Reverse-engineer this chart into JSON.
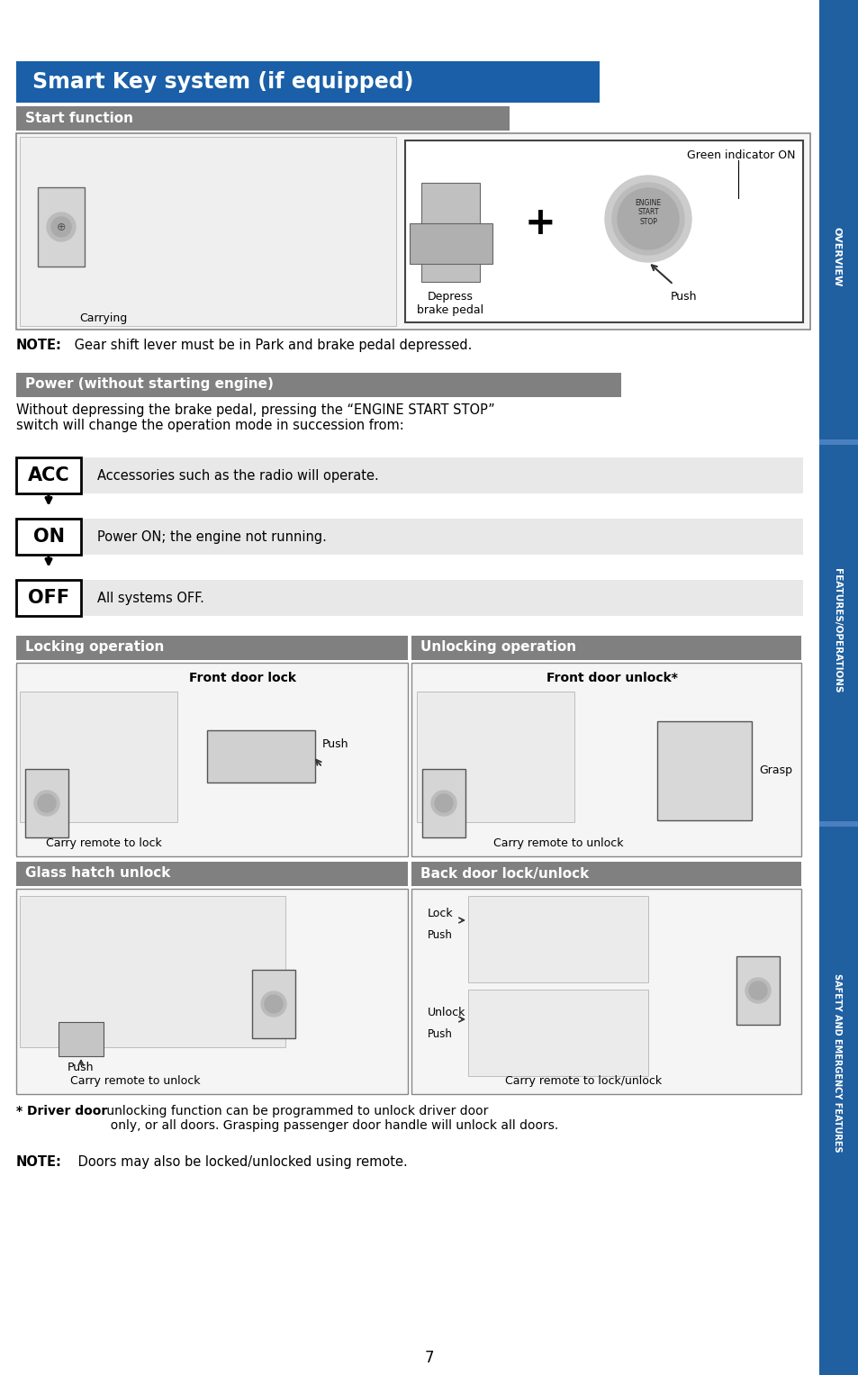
{
  "page_bg": "#ffffff",
  "right_sidebar_color": "#2060a0",
  "title_bg": "#1a5fa8",
  "title_text": "Smart Key system (if equipped)",
  "section1_title": "Start function",
  "section2_title": "Power (without starting engine)",
  "section3a_title": "Locking operation",
  "section3b_title": "Unlocking operation",
  "section4a_title": "Glass hatch unlock",
  "section4b_title": "Back door lock/unlock",
  "note1_bold": "NOTE:",
  "note1_rest": " Gear shift lever must be in Park and brake pedal depressed.",
  "power_desc": "Without depressing the brake pedal, pressing the “ENGINE START STOP”\nswitch will change the operation mode in succession from:",
  "acc_label": "ACC",
  "acc_desc": "Accessories such as the radio will operate.",
  "on_label": "ON",
  "on_desc": "Power ON; the engine not running.",
  "off_label": "OFF",
  "off_desc": "All systems OFF.",
  "green_indicator": "Green indicator ON",
  "carrying_label": "Carrying",
  "depress_label": "Depress\nbrake pedal",
  "push_label": "Push",
  "front_door_lock": "Front door lock",
  "carry_lock": "Carry remote to lock",
  "push_lock": "Push",
  "front_door_unlock": "Front door unlock*",
  "carry_unlock": "Carry remote to unlock",
  "grasp_label": "Grasp",
  "carry_remote_unlock2": "Carry remote to unlock",
  "carry_remote_lockunlock": "Carry remote to lock/unlock",
  "lock_label": "Lock",
  "unlock_label": "Unlock",
  "push_lock_label": "Push",
  "push_unlock_label": "Push",
  "footnote_bold": "* Driver door",
  "footnote_rest": " unlocking function can be programmed to unlock driver door\n  only, or all doors. Grasping passenger door handle will unlock all doors.",
  "note2_bold": "NOTE:",
  "note2_rest": " Doors may also be locked/unlocked using remote.",
  "page_number": "7",
  "sidebar_text1": "OVERVIEW",
  "sidebar_text2": "FEATURES/OPERATIONS",
  "sidebar_text3": "SAFETY AND EMERGENCY FEATURES",
  "section_gray": "#808080",
  "acc_bg": "#e8e8e8",
  "img_bg": "#f5f5f5",
  "img_border": "#888888"
}
